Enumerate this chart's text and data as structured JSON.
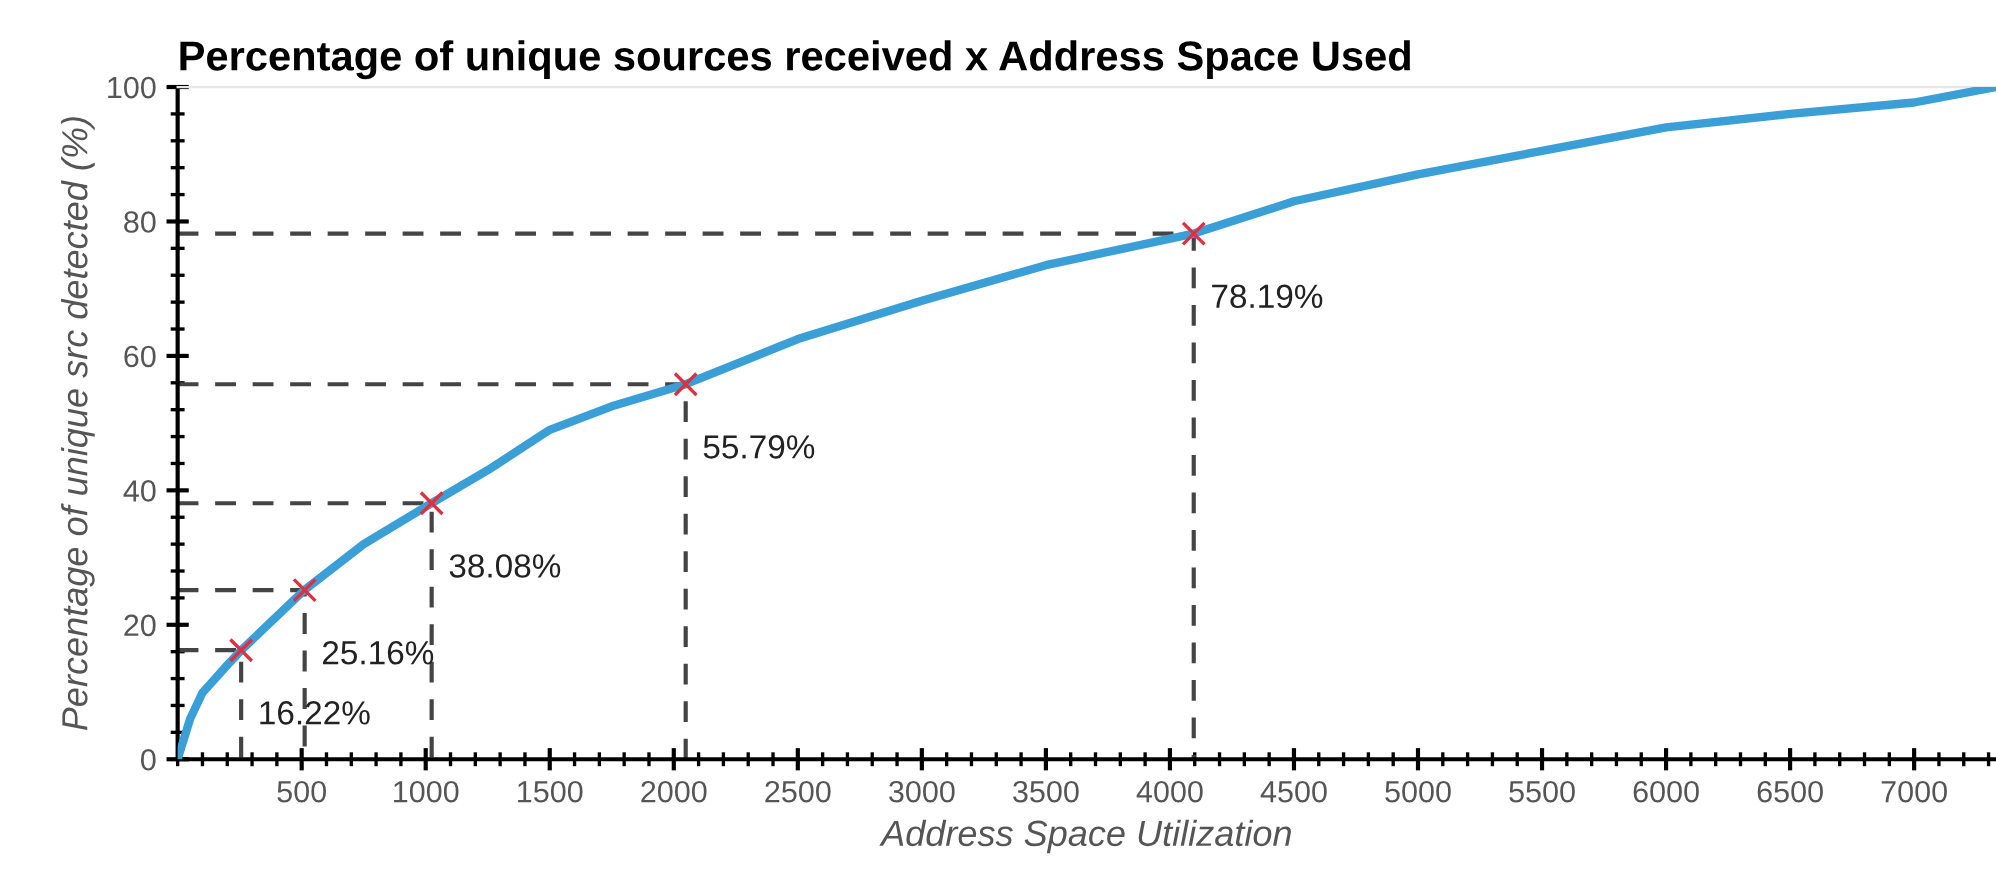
{
  "chart_data": {
    "type": "line",
    "title": "Percentage of unique sources received x Address Space Used",
    "xlabel": "Address Space Utilization",
    "ylabel": "Percentage of unique src detected (%)",
    "series": [
      {
        "color": "#3a9fd6",
        "x": [
          0,
          50,
          100,
          200,
          256,
          512,
          750,
          1024,
          1250,
          1500,
          1750,
          2048,
          2500,
          3000,
          3500,
          4096,
          4500,
          5000,
          5500,
          6000,
          6500,
          7000,
          7330
        ],
        "values": [
          0,
          6,
          9.9,
          14,
          16.2,
          25.2,
          32,
          38.1,
          43,
          49,
          52.5,
          55.8,
          62.5,
          68.2,
          73.5,
          78.2,
          83,
          87,
          90.5,
          94,
          96,
          97.7,
          100
        ]
      },
      {
        "color": "#444444",
        "line_style": "dashed",
        "x": [
          0,
          256,
          256
        ],
        "values": [
          16.22,
          16.22,
          0
        ]
      },
      {
        "color": "#444444",
        "line_style": "dashed",
        "x": [
          0,
          512,
          512
        ],
        "values": [
          25.16,
          25.16,
          0
        ]
      },
      {
        "color": "#444444",
        "line_style": "dashed",
        "x": [
          0,
          1024,
          1024
        ],
        "values": [
          38.08,
          38.08,
          0
        ]
      },
      {
        "color": "#444444",
        "line_style": "dashed",
        "x": [
          0,
          2048,
          2048
        ],
        "values": [
          55.79,
          55.79,
          0
        ]
      },
      {
        "color": "#444444",
        "line_style": "dashed",
        "x": [
          0,
          4096,
          4096
        ],
        "values": [
          78.19,
          78.19,
          0
        ]
      },
      {
        "type": "scatter",
        "color": "#e03040",
        "marker": "cross",
        "x": [
          256,
          512,
          1024,
          2048,
          4096
        ],
        "values": [
          16.22,
          25.16,
          38.08,
          55.79,
          78.19
        ],
        "value_labels": [
          "16.22%",
          "25.16%",
          "38.08%",
          "55.79%",
          "78.19%"
        ]
      }
    ],
    "xlim": [
      0,
      7330
    ],
    "ylim": [
      0,
      100
    ],
    "xticks": [
      500,
      1000,
      1500,
      2000,
      2500,
      3000,
      3500,
      4000,
      4500,
      5000,
      5500,
      6000,
      6500,
      7000
    ],
    "yticks": [
      0,
      20,
      40,
      60,
      80,
      100
    ],
    "grid": false
  }
}
